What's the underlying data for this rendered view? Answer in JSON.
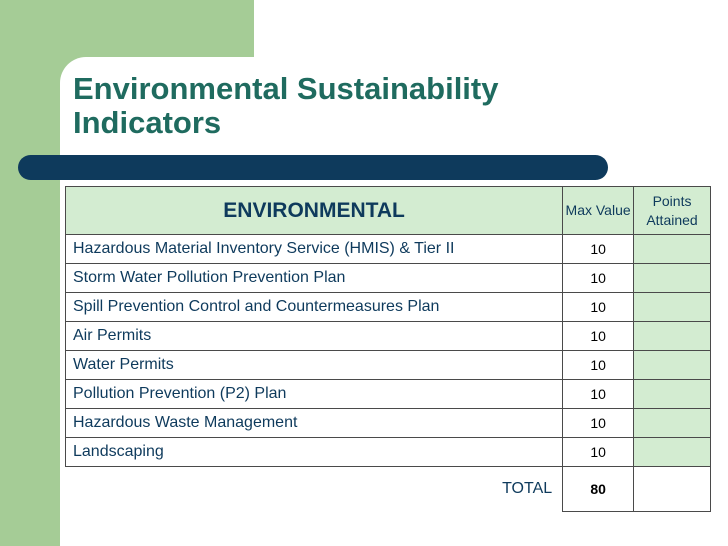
{
  "slide": {
    "title": "Environmental Sustainability Indicators"
  },
  "table": {
    "header": {
      "section": "ENVIRONMENTAL",
      "max_value": "Max Value",
      "points_attained": "Points Attained"
    },
    "rows": [
      {
        "label": "Hazardous Material Inventory Service (HMIS) & Tier II",
        "max": "10",
        "points": ""
      },
      {
        "label": "Storm Water Pollution Prevention Plan",
        "max": "10",
        "points": ""
      },
      {
        "label": "Spill Prevention Control and Countermeasures Plan",
        "max": "10",
        "points": ""
      },
      {
        "label": "Air Permits",
        "max": "10",
        "points": ""
      },
      {
        "label": "Water Permits",
        "max": "10",
        "points": ""
      },
      {
        "label": "Pollution Prevention (P2) Plan",
        "max": "10",
        "points": ""
      },
      {
        "label": "Hazardous Waste Management",
        "max": "10",
        "points": ""
      },
      {
        "label": "Landscaping",
        "max": "10",
        "points": ""
      }
    ],
    "total": {
      "label": "TOTAL",
      "max": "80",
      "points": ""
    }
  },
  "colors": {
    "title": "#1f6b5f",
    "accent_green": "#a5cc96",
    "navy": "#0e3a5c",
    "cell_fill": "#d3ecd1"
  }
}
